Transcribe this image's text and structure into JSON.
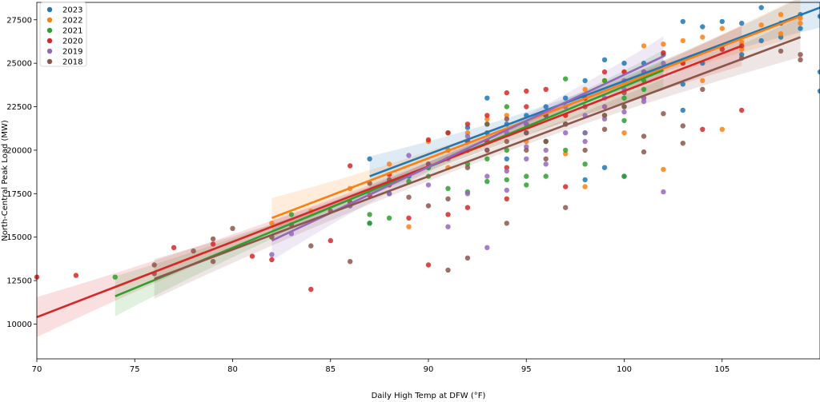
{
  "chart_data": {
    "type": "scatter",
    "xlabel": "Daily High Temp at DFW (°F)",
    "ylabel": "North-Central Peak Load (MW)",
    "xlim": [
      70,
      110
    ],
    "ylim": [
      8000,
      28500
    ],
    "xticks": [
      70,
      75,
      80,
      85,
      90,
      95,
      100,
      105
    ],
    "yticks": [
      10000,
      12500,
      15000,
      17500,
      20000,
      22500,
      25000,
      27500
    ],
    "grid": false,
    "legend_position": "top-left",
    "series": [
      {
        "name": "2023",
        "color": "#1f77b4",
        "fit": {
          "x": [
            87,
            110
          ],
          "y": [
            18500,
            28200
          ]
        },
        "points": [
          [
            87,
            19500
          ],
          [
            87,
            15800
          ],
          [
            88,
            17500
          ],
          [
            89,
            18500
          ],
          [
            90,
            19000
          ],
          [
            91,
            20000
          ],
          [
            92,
            21300
          ],
          [
            92,
            20500
          ],
          [
            93,
            23000
          ],
          [
            93,
            21000
          ],
          [
            94,
            21500
          ],
          [
            95,
            22000
          ],
          [
            95,
            21000
          ],
          [
            96,
            22500
          ],
          [
            97,
            23000
          ],
          [
            98,
            18300
          ],
          [
            98,
            24000
          ],
          [
            99,
            25200
          ],
          [
            99,
            19000
          ],
          [
            100,
            25000
          ],
          [
            100,
            18500
          ],
          [
            101,
            24500
          ],
          [
            102,
            25500
          ],
          [
            103,
            27400
          ],
          [
            103,
            22300
          ],
          [
            104,
            27100
          ],
          [
            104,
            25000
          ],
          [
            105,
            27400
          ],
          [
            106,
            27300
          ],
          [
            106,
            25500
          ],
          [
            107,
            28200
          ],
          [
            107,
            26300
          ],
          [
            108,
            27300
          ],
          [
            109,
            27800
          ],
          [
            110,
            27700
          ],
          [
            110,
            24500
          ],
          [
            110,
            23400
          ],
          [
            109,
            27000
          ],
          [
            105,
            26000
          ],
          [
            108,
            26500
          ],
          [
            103,
            23800
          ],
          [
            101,
            25000
          ],
          [
            97,
            21500
          ],
          [
            96,
            20500
          ],
          [
            94,
            19500
          ]
        ]
      },
      {
        "name": "2022",
        "color": "#ff7f0e",
        "fit": {
          "x": [
            82,
            109
          ],
          "y": [
            16100,
            27700
          ]
        },
        "points": [
          [
            82,
            15800
          ],
          [
            84,
            16500
          ],
          [
            86,
            17800
          ],
          [
            88,
            19200
          ],
          [
            89,
            15600
          ],
          [
            90,
            20500
          ],
          [
            91,
            19000
          ],
          [
            92,
            21000
          ],
          [
            93,
            21800
          ],
          [
            94,
            22000
          ],
          [
            95,
            20500
          ],
          [
            96,
            22000
          ],
          [
            97,
            19800
          ],
          [
            98,
            17900
          ],
          [
            98,
            23500
          ],
          [
            99,
            24000
          ],
          [
            100,
            24500
          ],
          [
            101,
            26000
          ],
          [
            102,
            26100
          ],
          [
            102,
            18900
          ],
          [
            103,
            26300
          ],
          [
            104,
            26500
          ],
          [
            105,
            21200
          ],
          [
            105,
            27000
          ],
          [
            106,
            25800
          ],
          [
            107,
            27200
          ],
          [
            108,
            26700
          ],
          [
            109,
            27600
          ],
          [
            101,
            23000
          ],
          [
            100,
            21000
          ],
          [
            99,
            22500
          ],
          [
            97,
            22000
          ],
          [
            95,
            21500
          ],
          [
            93,
            20500
          ],
          [
            91,
            20000
          ],
          [
            103,
            25000
          ],
          [
            104,
            24000
          ],
          [
            106,
            26200
          ],
          [
            108,
            27800
          ],
          [
            109,
            27300
          ]
        ]
      },
      {
        "name": "2021",
        "color": "#2ca02c",
        "fit": {
          "x": [
            74,
            102
          ],
          "y": [
            11600,
            24600
          ]
        },
        "points": [
          [
            74,
            12700
          ],
          [
            83,
            16300
          ],
          [
            86,
            16800
          ],
          [
            87,
            16300
          ],
          [
            88,
            16100
          ],
          [
            89,
            18200
          ],
          [
            90,
            19000
          ],
          [
            91,
            17800
          ],
          [
            91,
            21000
          ],
          [
            92,
            17600
          ],
          [
            92,
            20500
          ],
          [
            93,
            18200
          ],
          [
            93,
            21500
          ],
          [
            94,
            18300
          ],
          [
            94,
            22500
          ],
          [
            95,
            18500
          ],
          [
            95,
            18000
          ],
          [
            95,
            21500
          ],
          [
            96,
            18500
          ],
          [
            96,
            22000
          ],
          [
            97,
            24100
          ],
          [
            97,
            21500
          ],
          [
            98,
            19200
          ],
          [
            98,
            23000
          ],
          [
            99,
            22000
          ],
          [
            99,
            24000
          ],
          [
            100,
            21700
          ],
          [
            100,
            18500
          ],
          [
            100,
            23000
          ],
          [
            101,
            24000
          ],
          [
            87,
            15800
          ],
          [
            90,
            18500
          ],
          [
            92,
            19200
          ],
          [
            94,
            20000
          ],
          [
            96,
            20500
          ],
          [
            98,
            21000
          ],
          [
            100,
            22500
          ],
          [
            101,
            23500
          ],
          [
            97,
            20000
          ],
          [
            93,
            19500
          ]
        ]
      },
      {
        "name": "2020",
        "color": "#d62728",
        "fit": {
          "x": [
            70,
            106
          ],
          "y": [
            10400,
            26000
          ]
        },
        "points": [
          [
            70,
            12700
          ],
          [
            72,
            12800
          ],
          [
            77,
            14400
          ],
          [
            79,
            14600
          ],
          [
            81,
            13900
          ],
          [
            82,
            13700
          ],
          [
            84,
            12000
          ],
          [
            85,
            14800
          ],
          [
            86,
            19100
          ],
          [
            87,
            17400
          ],
          [
            88,
            18000
          ],
          [
            89,
            16100
          ],
          [
            90,
            13400
          ],
          [
            90,
            20600
          ],
          [
            91,
            16300
          ],
          [
            91,
            21000
          ],
          [
            92,
            16700
          ],
          [
            92,
            21500
          ],
          [
            93,
            20500
          ],
          [
            94,
            23300
          ],
          [
            94,
            19000
          ],
          [
            94,
            17200
          ],
          [
            95,
            23400
          ],
          [
            96,
            23500
          ],
          [
            97,
            17900
          ],
          [
            97,
            22000
          ],
          [
            98,
            23000
          ],
          [
            99,
            24500
          ],
          [
            100,
            24500
          ],
          [
            101,
            24500
          ],
          [
            102,
            25600
          ],
          [
            103,
            25000
          ],
          [
            104,
            21200
          ],
          [
            105,
            25800
          ],
          [
            106,
            22300
          ],
          [
            106,
            26000
          ],
          [
            93,
            22000
          ],
          [
            95,
            22500
          ],
          [
            92,
            20000
          ],
          [
            88,
            18600
          ]
        ]
      },
      {
        "name": "2019",
        "color": "#9467bd",
        "fit": {
          "x": [
            82,
            102
          ],
          "y": [
            14800,
            25400
          ]
        },
        "points": [
          [
            82,
            14000
          ],
          [
            83,
            15200
          ],
          [
            86,
            16800
          ],
          [
            88,
            17500
          ],
          [
            89,
            19700
          ],
          [
            90,
            18000
          ],
          [
            91,
            15600
          ],
          [
            91,
            19500
          ],
          [
            92,
            17500
          ],
          [
            92,
            20800
          ],
          [
            93,
            14400
          ],
          [
            93,
            20000
          ],
          [
            94,
            18800
          ],
          [
            94,
            21000
          ],
          [
            95,
            19500
          ],
          [
            95,
            21500
          ],
          [
            96,
            20000
          ],
          [
            96,
            22000
          ],
          [
            97,
            21500
          ],
          [
            97,
            22500
          ],
          [
            98,
            21000
          ],
          [
            98,
            22000
          ],
          [
            99,
            23000
          ],
          [
            99,
            22500
          ],
          [
            100,
            23500
          ],
          [
            100,
            24000
          ],
          [
            101,
            23000
          ],
          [
            101,
            24500
          ],
          [
            102,
            17600
          ],
          [
            102,
            25000
          ],
          [
            90,
            19200
          ],
          [
            93,
            18500
          ],
          [
            95,
            20200
          ],
          [
            97,
            21000
          ],
          [
            99,
            21800
          ],
          [
            101,
            22800
          ],
          [
            94,
            17700
          ],
          [
            96,
            19200
          ],
          [
            98,
            20500
          ],
          [
            100,
            22200
          ]
        ]
      },
      {
        "name": "2018",
        "color": "#8c564b",
        "fit": {
          "x": [
            76,
            109
          ],
          "y": [
            12600,
            26500
          ]
        },
        "points": [
          [
            76,
            13400
          ],
          [
            76,
            12900
          ],
          [
            78,
            14200
          ],
          [
            79,
            14900
          ],
          [
            79,
            13600
          ],
          [
            80,
            15500
          ],
          [
            82,
            15000
          ],
          [
            83,
            15700
          ],
          [
            84,
            14500
          ],
          [
            85,
            16500
          ],
          [
            86,
            13600
          ],
          [
            86,
            17000
          ],
          [
            87,
            18100
          ],
          [
            88,
            18300
          ],
          [
            89,
            17300
          ],
          [
            90,
            16800
          ],
          [
            90,
            19200
          ],
          [
            91,
            13100
          ],
          [
            91,
            17200
          ],
          [
            92,
            13800
          ],
          [
            92,
            19000
          ],
          [
            93,
            20000
          ],
          [
            93,
            21500
          ],
          [
            94,
            15800
          ],
          [
            94,
            20500
          ],
          [
            95,
            20000
          ],
          [
            95,
            21000
          ],
          [
            96,
            19500
          ],
          [
            96,
            20500
          ],
          [
            97,
            16700
          ],
          [
            97,
            21500
          ],
          [
            98,
            20000
          ],
          [
            98,
            22500
          ],
          [
            99,
            22000
          ],
          [
            100,
            22500
          ],
          [
            101,
            19900
          ],
          [
            101,
            20800
          ],
          [
            102,
            22100
          ],
          [
            103,
            20400
          ],
          [
            103,
            21400
          ],
          [
            104,
            23500
          ],
          [
            106,
            25300
          ],
          [
            108,
            25700
          ],
          [
            109,
            25500
          ],
          [
            109,
            25200
          ],
          [
            96,
            22000
          ],
          [
            94,
            21800
          ],
          [
            92,
            20500
          ],
          [
            99,
            21200
          ],
          [
            100,
            23300
          ]
        ]
      }
    ]
  }
}
